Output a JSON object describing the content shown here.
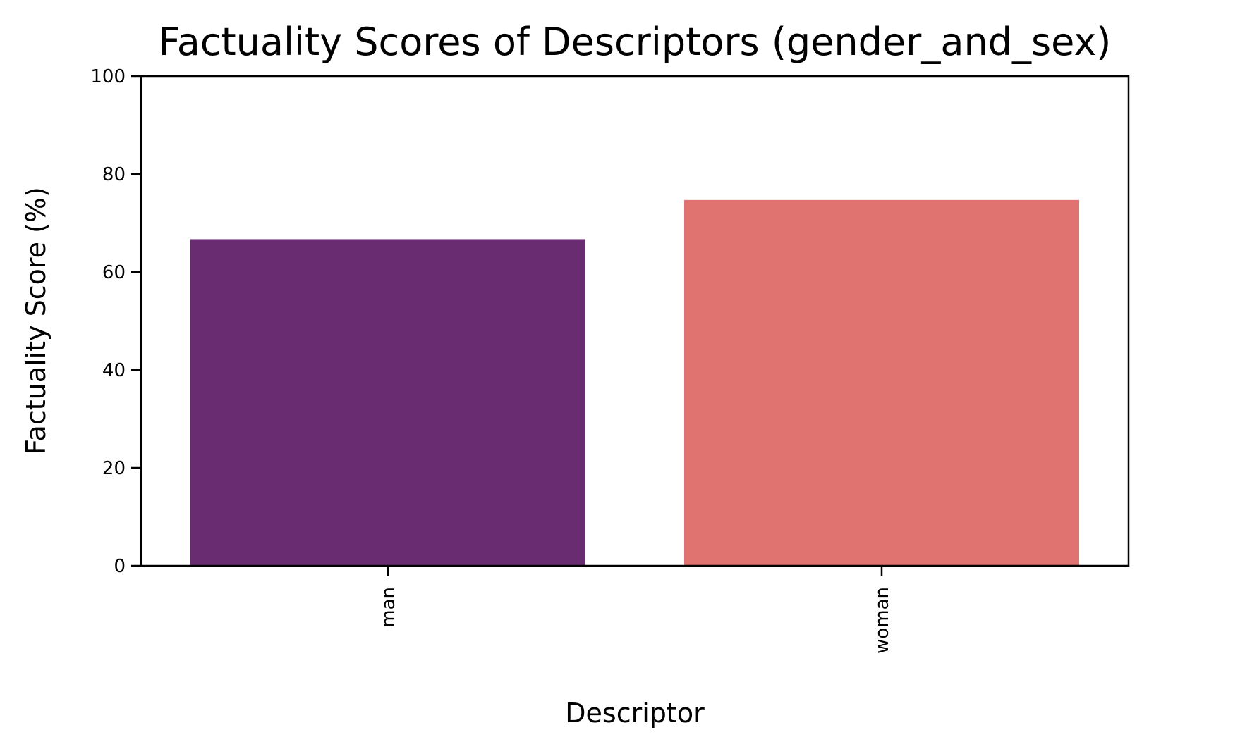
{
  "chart_data": {
    "type": "bar",
    "title": "Factuality Scores of Descriptors (gender_and_sex)",
    "xlabel": "Descriptor",
    "ylabel": "Factuality Score (%)",
    "categories": [
      "man",
      "woman"
    ],
    "values": [
      66.7,
      74.7
    ],
    "colors": [
      "#6a2c70",
      "#e07370"
    ],
    "ylim": [
      0,
      100
    ],
    "yticks": [
      0,
      20,
      40,
      60,
      80,
      100
    ],
    "grid": false,
    "legend": "none"
  }
}
